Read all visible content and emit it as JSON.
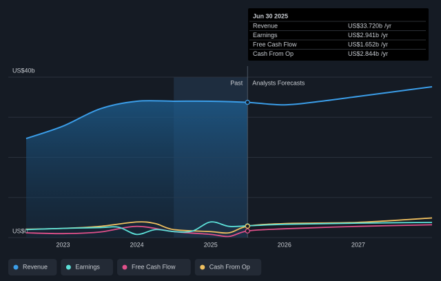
{
  "chart_data": {
    "type": "line",
    "xlim": [
      2022.5,
      2028.0
    ],
    "xticks": [
      2023,
      2024,
      2025,
      2026,
      2027
    ],
    "ylim": [
      0,
      40
    ],
    "yticks": [
      {
        "value": 0,
        "label": "US$0"
      },
      {
        "value": 40,
        "label": "US$40b"
      }
    ],
    "ygrid": [
      0,
      10,
      20,
      30,
      40
    ],
    "divider": 2025.5,
    "highlight": [
      2024.5,
      2025.5
    ],
    "annotations": {
      "past": "Past",
      "forecast": "Analysts Forecasts"
    },
    "series": [
      {
        "name": "Revenue",
        "color": "#3b9ee9",
        "x": [
          2022.5,
          2023.0,
          2023.5,
          2024.0,
          2024.5,
          2025.0,
          2025.5,
          2026.0,
          2026.5,
          2027.0,
          2027.5,
          2028.0
        ],
        "values": [
          24.7,
          27.8,
          32.1,
          34.0,
          34.0,
          34.0,
          33.72,
          33.1,
          34.0,
          35.2,
          36.4,
          37.6
        ]
      },
      {
        "name": "Earnings",
        "color": "#5ce0d8",
        "x": [
          2022.5,
          2023.0,
          2023.5,
          2023.75,
          2024.0,
          2024.25,
          2024.5,
          2024.75,
          2025.0,
          2025.25,
          2025.5,
          2026.0,
          2027.0,
          2028.0
        ],
        "values": [
          2.0,
          2.3,
          2.5,
          2.6,
          0.8,
          2.0,
          1.5,
          1.6,
          3.9,
          2.8,
          2.941,
          3.3,
          3.6,
          3.8
        ]
      },
      {
        "name": "Free Cash Flow",
        "color": "#e0508a",
        "x": [
          2022.5,
          2023.0,
          2023.5,
          2024.0,
          2024.5,
          2025.0,
          2025.25,
          2025.5,
          2026.0,
          2027.0,
          2028.0
        ],
        "values": [
          1.2,
          1.0,
          1.4,
          2.8,
          1.5,
          0.8,
          0.3,
          1.652,
          2.2,
          2.8,
          3.2
        ]
      },
      {
        "name": "Cash From Op",
        "color": "#f0c060",
        "x": [
          2022.5,
          2023.0,
          2023.5,
          2024.0,
          2024.25,
          2024.5,
          2025.0,
          2025.25,
          2025.5,
          2026.0,
          2027.0,
          2028.0
        ],
        "values": [
          2.1,
          2.3,
          2.8,
          3.9,
          3.5,
          2.0,
          1.5,
          1.2,
          2.844,
          3.5,
          3.8,
          4.9
        ]
      }
    ],
    "tooltip": {
      "title": "Jun 30 2025",
      "rows": [
        {
          "label": "Revenue",
          "value": 33.72,
          "value_label": "US$33.720b",
          "unit": "/yr"
        },
        {
          "label": "Earnings",
          "value": 2.941,
          "value_label": "US$2.941b",
          "unit": "/yr"
        },
        {
          "label": "Free Cash Flow",
          "value": 1.652,
          "value_label": "US$1.652b",
          "unit": "/yr"
        },
        {
          "label": "Cash From Op",
          "value": 2.844,
          "value_label": "US$2.844b",
          "unit": "/yr"
        }
      ]
    }
  }
}
